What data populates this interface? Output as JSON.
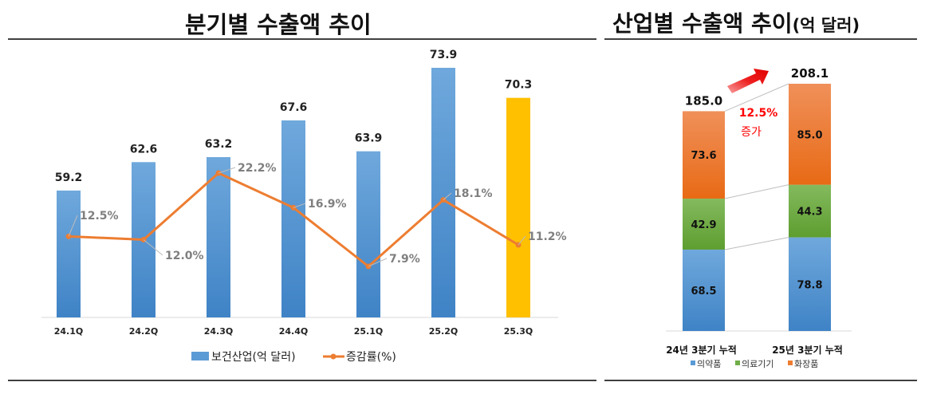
{
  "chart_data": [
    {
      "type": "bar+line",
      "title": "분기별 수출액 추이",
      "categories": [
        "24.1Q",
        "24.2Q",
        "24.3Q",
        "24.4Q",
        "25.1Q",
        "25.2Q",
        "25.3Q"
      ],
      "series": [
        {
          "name": "보건산업(억 달러)",
          "type": "bar",
          "values": [
            59.2,
            62.6,
            63.2,
            67.6,
            63.9,
            73.9,
            70.3
          ],
          "color": "#5B9BD5",
          "highlight_color": "#FFC000",
          "highlight_index": 6
        },
        {
          "name": "증감률(%)",
          "type": "line",
          "values": [
            12.5,
            12.0,
            22.2,
            16.9,
            7.9,
            18.1,
            11.2
          ],
          "labels": [
            "12.5%",
            "12.0%",
            "22.2%",
            "16.9%",
            "7.9%",
            "18.1%",
            "11.2%"
          ],
          "color": "#ED7D31"
        }
      ],
      "ylim": [
        44,
        74.5
      ],
      "grid": false,
      "legend": "bottom"
    },
    {
      "type": "stacked-bar",
      "title": "산업별 수출액 추이(억 달러)",
      "categories": [
        "24년 3분기 누적",
        "25년 3분기 누적"
      ],
      "totals": [
        "185.0",
        "208.1"
      ],
      "series": [
        {
          "name": "의약품",
          "values": [
            68.5,
            78.8
          ],
          "color": "#5B9BD5"
        },
        {
          "name": "의료기기",
          "values": [
            42.9,
            44.3
          ],
          "color": "#70AD47"
        },
        {
          "name": "화장품",
          "values": [
            73.6,
            85.0
          ],
          "color": "#ED7D31"
        }
      ],
      "annotation": {
        "rate": "12.5%",
        "text": "증가"
      },
      "ylim": [
        0,
        208.1
      ],
      "legend": "bottom"
    }
  ]
}
